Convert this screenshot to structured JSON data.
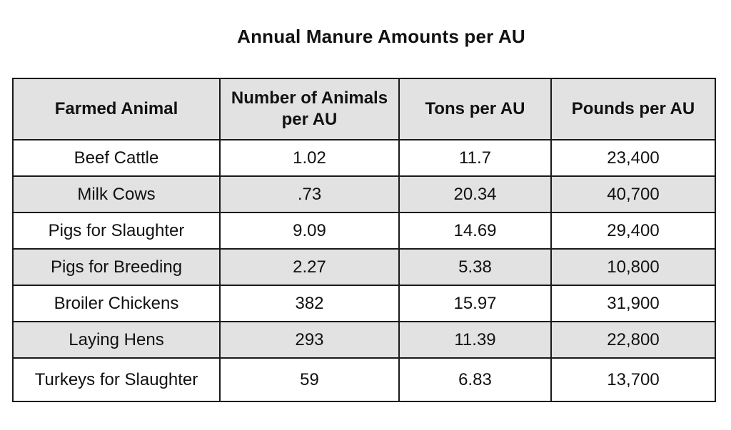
{
  "title": "Annual Manure Amounts per AU",
  "table": {
    "headers": [
      "Farmed Animal",
      "Number of Animals per AU",
      "Tons per AU",
      "Pounds per AU"
    ],
    "rows": [
      [
        "Beef Cattle",
        "1.02",
        "11.7",
        "23,400"
      ],
      [
        "Milk Cows",
        ".73",
        "20.34",
        "40,700"
      ],
      [
        "Pigs for Slaughter",
        "9.09",
        "14.69",
        "29,400"
      ],
      [
        "Pigs for Breeding",
        "2.27",
        "5.38",
        "10,800"
      ],
      [
        "Broiler Chickens",
        "382",
        "15.97",
        "31,900"
      ],
      [
        "Laying Hens",
        "293",
        "11.39",
        "22,800"
      ],
      [
        "Turkeys for Slaughter",
        "59",
        "6.83",
        "13,700"
      ]
    ]
  },
  "colors": {
    "shaded_row": "#e2e2e2",
    "border": "#1a1a1a",
    "background": "#ffffff"
  }
}
